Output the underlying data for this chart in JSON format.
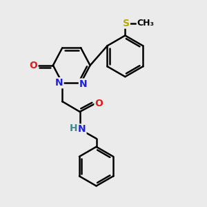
{
  "background_color": "#ebebeb",
  "atom_colors": {
    "C": "#000000",
    "N": "#2020dd",
    "O": "#dd2020",
    "S": "#bbaa00",
    "H": "#448888"
  },
  "bond_color": "#000000",
  "bond_width": 1.8,
  "font_size": 10,
  "fig_size": [
    3.0,
    3.0
  ],
  "dpi": 100,
  "xlim": [
    0,
    10
  ],
  "ylim": [
    0,
    10
  ]
}
